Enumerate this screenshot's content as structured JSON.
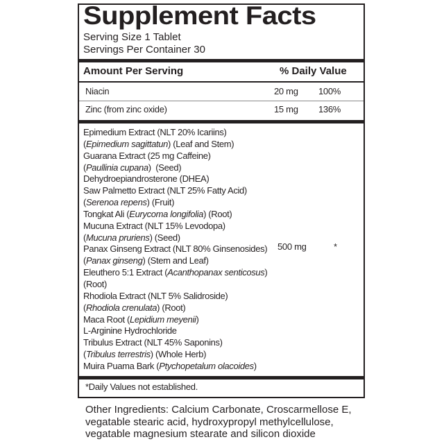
{
  "title": "Supplement Facts",
  "serving_size": "Serving Size 1 Tablet",
  "servings_per_container": "Servings Per Container 30",
  "header": {
    "amount": "Amount Per Serving",
    "dv": "% Daily Value"
  },
  "nutrients": [
    {
      "name": "Niacin",
      "amount": "20 mg",
      "dv": "100%"
    },
    {
      "name": "Zinc (from zinc oxide)",
      "amount": "15 mg",
      "dv": "136%"
    }
  ],
  "blend": {
    "amount": "500 mg",
    "dv": "*",
    "lines": [
      {
        "pre": "Epimedium Extract (NLT 20% Icariins)",
        "it": "",
        "post": ""
      },
      {
        "pre": "(",
        "it": "Epimedium sagittatun",
        "post": ") (Leaf and Stem)"
      },
      {
        "pre": "Guarana Extract (25 mg Caffeine)",
        "it": "",
        "post": ""
      },
      {
        "pre": "(",
        "it": "Paullinia cupana",
        "post": ")  (Seed)"
      },
      {
        "pre": "Dehydroepiandrosterone (DHEA)",
        "it": "",
        "post": ""
      },
      {
        "pre": "Saw Palmetto Extract (NLT 25% Fatty Acid)",
        "it": "",
        "post": ""
      },
      {
        "pre": "(",
        "it": "Serenoa repens",
        "post": ") (Fruit)"
      },
      {
        "pre": "Tongkat Ali (",
        "it": "Eurycoma longifolia",
        "post": ") (Root)"
      },
      {
        "pre": "Mucuna Extract (NLT 15% Levodopa)",
        "it": "",
        "post": ""
      },
      {
        "pre": "(",
        "it": "Mucuna pruriens",
        "post": ") (Seed)"
      },
      {
        "pre": "Panax Ginseng Extract (NLT 80% Ginsenosides)",
        "it": "",
        "post": ""
      },
      {
        "pre": "(",
        "it": "Panax ginseng",
        "post": ") (Stem and Leaf)"
      },
      {
        "pre": "Eleuthero 5:1 Extract (",
        "it": "Acanthopanax senticosus",
        "post": ")"
      },
      {
        "pre": "(Root)",
        "it": "",
        "post": ""
      },
      {
        "pre": "Rhodiola Extract (NLT 5% Salidroside)",
        "it": "",
        "post": ""
      },
      {
        "pre": "(",
        "it": "Rhodiola crenulata",
        "post": ") (Root)"
      },
      {
        "pre": "Maca Root (",
        "it": "Lepidium meyenii",
        "post": ")"
      },
      {
        "pre": "L-Arginine Hydrochloride",
        "it": "",
        "post": ""
      },
      {
        "pre": "Tribulus Extract (NLT 45% Saponins)",
        "it": "",
        "post": ""
      },
      {
        "pre": "(",
        "it": "Tribulus terrestris",
        "post": ") (Whole Herb)"
      },
      {
        "pre": "Muira Puama Bark (",
        "it": "Ptychopetalum olacoides",
        "post": ")"
      }
    ]
  },
  "footnote": "*Daily Values not established.",
  "other_ingredients": [
    "Other Ingredients: Calcium Carbonate, Croscarmellose E,",
    "vegatable stearic acid, hydroxypropyl methylcellulose,",
    "vegatable magnesium stearate and silicon dioxide"
  ]
}
